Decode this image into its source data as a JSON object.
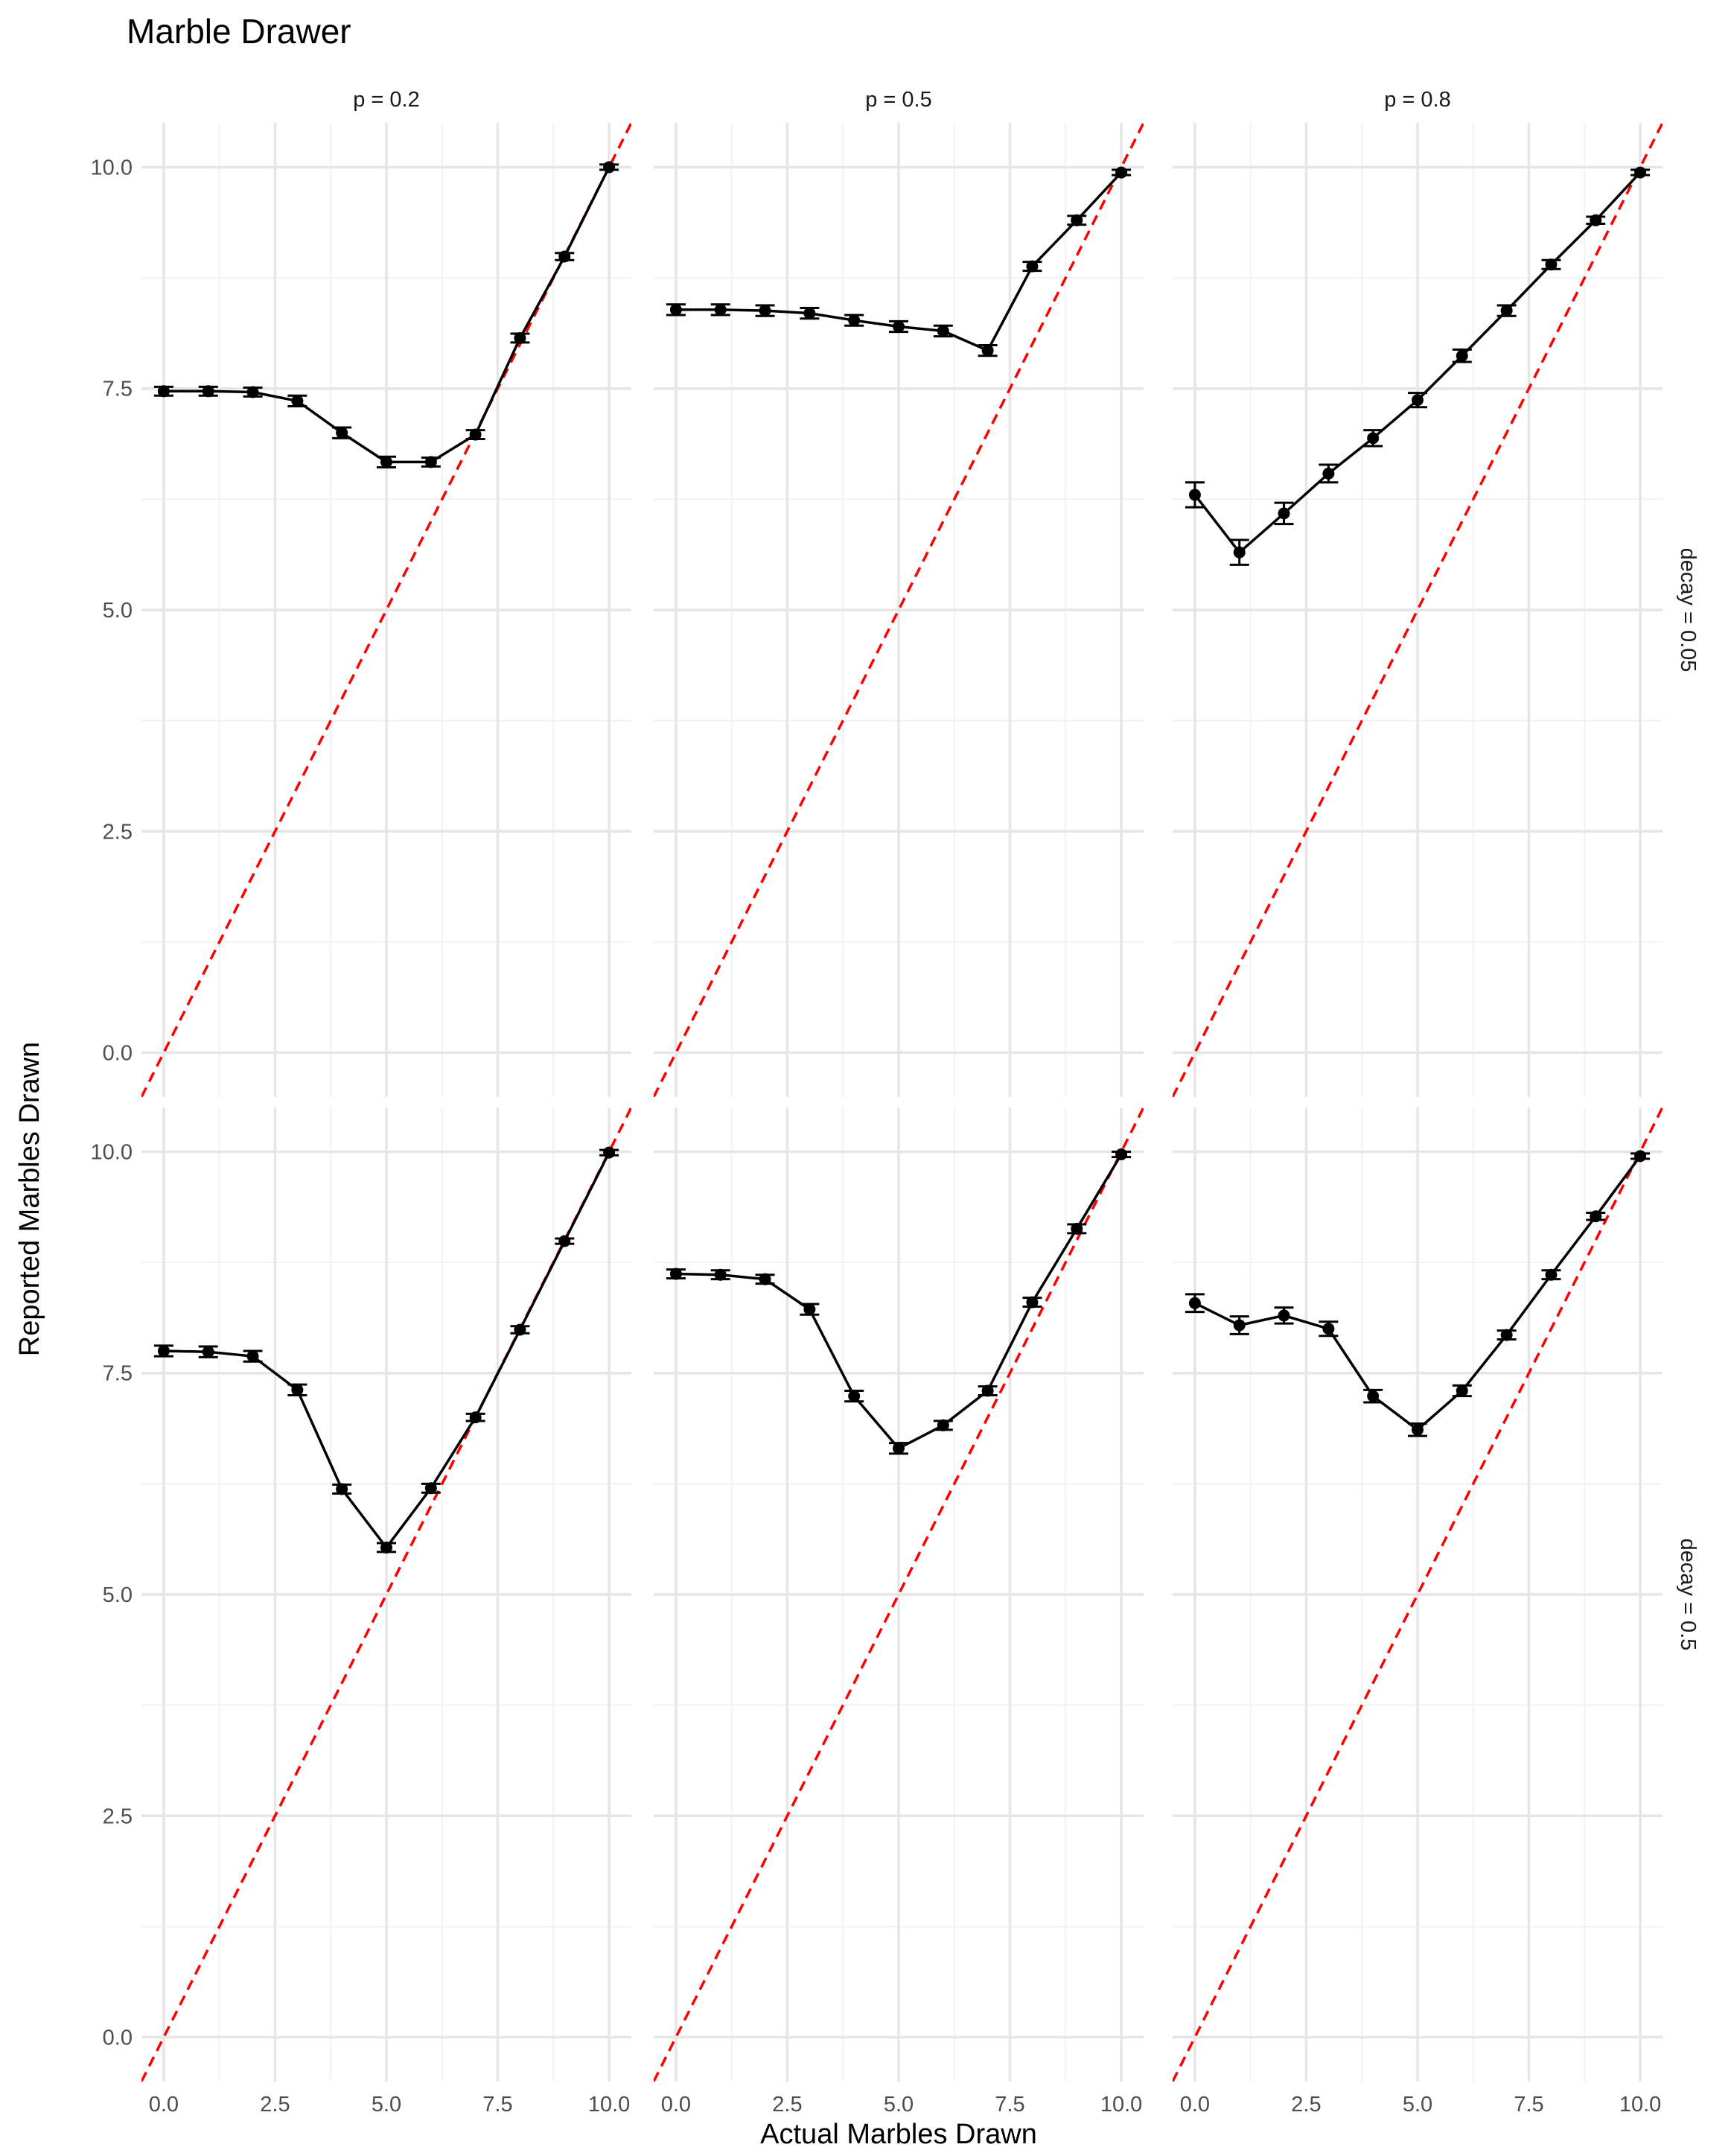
{
  "chart_data": {
    "type": "line",
    "title": "Marble Drawer",
    "xlabel": "Actual Marbles Drawn",
    "ylabel": "Reported Marbles Drawn",
    "xlim": [
      -0.5,
      10.5
    ],
    "ylim": [
      -0.5,
      10.5
    ],
    "x_ticks": [
      "0.0",
      "2.5",
      "5.0",
      "7.5",
      "10.0"
    ],
    "y_ticks": [
      "0.0",
      "2.5",
      "5.0",
      "7.5",
      "10.0"
    ],
    "grid": true,
    "reference_line": {
      "slope": 1,
      "intercept": 0,
      "style": "dashed",
      "color": "#ff0000"
    },
    "colors": {
      "series": "#000000",
      "reference": "#ff0000",
      "grid_major": "#e6e6e6",
      "grid_minor": "#f2f2f2"
    },
    "columns": [
      "p = 0.2",
      "p = 0.5",
      "p = 0.8"
    ],
    "rows": [
      "decay = 0.05",
      "decay = 0.5"
    ],
    "x": [
      0,
      1,
      2,
      3,
      4,
      5,
      6,
      7,
      8,
      9,
      10
    ],
    "panels": [
      {
        "row": "decay = 0.05",
        "col": "p = 0.2",
        "values": [
          7.47,
          7.47,
          7.46,
          7.36,
          7.0,
          6.67,
          6.67,
          6.98,
          8.07,
          8.99,
          10.0
        ],
        "errors": [
          0.05,
          0.05,
          0.05,
          0.06,
          0.06,
          0.06,
          0.05,
          0.05,
          0.05,
          0.04,
          0.03
        ]
      },
      {
        "row": "decay = 0.05",
        "col": "p = 0.5",
        "values": [
          8.39,
          8.39,
          8.38,
          8.35,
          8.27,
          8.2,
          8.15,
          7.93,
          8.88,
          9.4,
          9.94
        ],
        "errors": [
          0.06,
          0.06,
          0.06,
          0.06,
          0.06,
          0.06,
          0.06,
          0.06,
          0.05,
          0.05,
          0.03
        ]
      },
      {
        "row": "decay = 0.05",
        "col": "p = 0.8",
        "values": [
          6.3,
          5.65,
          6.09,
          6.54,
          6.94,
          7.37,
          7.87,
          8.38,
          8.9,
          9.4,
          9.94
        ],
        "errors": [
          0.14,
          0.14,
          0.12,
          0.1,
          0.09,
          0.08,
          0.07,
          0.06,
          0.05,
          0.04,
          0.03
        ]
      },
      {
        "row": "decay = 0.5",
        "col": "p = 0.2",
        "values": [
          7.75,
          7.74,
          7.69,
          7.31,
          6.19,
          5.53,
          6.2,
          7.0,
          7.99,
          8.99,
          9.99
        ],
        "errors": [
          0.06,
          0.06,
          0.06,
          0.06,
          0.05,
          0.05,
          0.05,
          0.04,
          0.04,
          0.03,
          0.03
        ]
      },
      {
        "row": "decay = 0.5",
        "col": "p = 0.5",
        "values": [
          8.62,
          8.61,
          8.56,
          8.22,
          7.24,
          6.65,
          6.91,
          7.3,
          8.3,
          9.13,
          9.97
        ],
        "errors": [
          0.05,
          0.05,
          0.05,
          0.06,
          0.06,
          0.06,
          0.05,
          0.05,
          0.05,
          0.05,
          0.03
        ]
      },
      {
        "row": "decay = 0.5",
        "col": "p = 0.8",
        "values": [
          8.29,
          8.04,
          8.15,
          8.0,
          7.24,
          6.86,
          7.3,
          7.93,
          8.61,
          9.27,
          9.95
        ],
        "errors": [
          0.1,
          0.1,
          0.09,
          0.08,
          0.07,
          0.07,
          0.06,
          0.05,
          0.05,
          0.04,
          0.03
        ]
      }
    ]
  }
}
